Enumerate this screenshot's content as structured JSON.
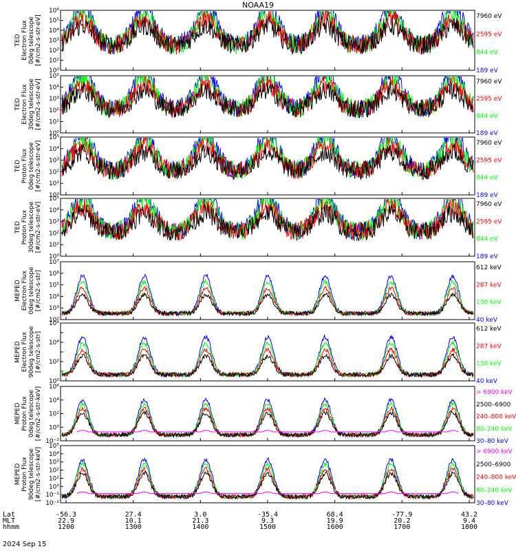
{
  "title": "NOAA19",
  "date_label": "2024 Sep 15",
  "footer": {
    "row_labels": [
      "Lat",
      "MLT",
      "hhmm"
    ],
    "columns": [
      {
        "lat": "-56.3",
        "mlt": "22.9",
        "hhmm": "1200"
      },
      {
        "lat": "27.4",
        "mlt": "10.1",
        "hhmm": "1300"
      },
      {
        "lat": "3.0",
        "mlt": "21.3",
        "hhmm": "1400"
      },
      {
        "lat": "-35.4",
        "mlt": "9.3",
        "hhmm": "1500"
      },
      {
        "lat": "68.4",
        "mlt": "19.9",
        "hhmm": "1600"
      },
      {
        "lat": "-77.9",
        "mlt": "20.2",
        "hhmm": "1700"
      },
      {
        "lat": "43.2",
        "mlt": "9.4",
        "hhmm": "1800"
      }
    ]
  },
  "colors": {
    "black": "#000000",
    "blue": "#0000ff",
    "red": "#ff0000",
    "green": "#00ff00",
    "magenta": "#ff00ff"
  },
  "chart_data": [
    {
      "type": "line",
      "panel": 1,
      "ylabel": [
        "TED",
        "Electron Flux",
        "0deg telescope",
        "[#/cm2-s-str-eV]"
      ],
      "ylim": [
        1,
        1000000
      ],
      "yscale": "log",
      "ytick_labels": [
        "10⁰",
        "10¹",
        "10²",
        "10³",
        "10⁴",
        "10⁵",
        "10⁶"
      ],
      "legend": [
        {
          "label": "7960 eV",
          "color": "black"
        },
        {
          "label": "2595 eV",
          "color": "red"
        },
        {
          "label": "844 eV",
          "color": "green"
        },
        {
          "label": "189 eV",
          "color": "blue"
        }
      ]
    },
    {
      "type": "line",
      "panel": 2,
      "ylabel": [
        "TED",
        "Electron Flux",
        "30deg telescope",
        "[#/cm2-s-str-eV]"
      ],
      "ylim": [
        1,
        100000
      ],
      "yscale": "log",
      "ytick_labels": [
        "10⁰",
        "10¹",
        "10²",
        "10³",
        "10⁴",
        "10⁵"
      ],
      "legend": [
        {
          "label": "7960 eV",
          "color": "black"
        },
        {
          "label": "2595 eV",
          "color": "red"
        },
        {
          "label": "844 eV",
          "color": "green"
        },
        {
          "label": "189 eV",
          "color": "blue"
        }
      ]
    },
    {
      "type": "line",
      "panel": 3,
      "ylabel": [
        "TED",
        "Proton Flux",
        "0deg telescope",
        "[#/cm2-s-str-eV]"
      ],
      "ylim": [
        1,
        100000
      ],
      "yscale": "log",
      "ytick_labels": [
        "10⁰",
        "10¹",
        "10²",
        "10³",
        "10⁴",
        "10⁵"
      ],
      "legend": [
        {
          "label": "7960 eV",
          "color": "black"
        },
        {
          "label": "2595 eV",
          "color": "red"
        },
        {
          "label": "844 eV",
          "color": "green"
        },
        {
          "label": "189 eV",
          "color": "blue"
        }
      ]
    },
    {
      "type": "line",
      "panel": 4,
      "ylabel": [
        "TED",
        "Proton Flux",
        "30deg telescope",
        "[#/cm2-s-str-eV]"
      ],
      "ylim": [
        1,
        100000
      ],
      "yscale": "log",
      "ytick_labels": [
        "10⁰",
        "10¹",
        "10²",
        "10³",
        "10⁴",
        "10⁵"
      ],
      "legend": [
        {
          "label": "7960 eV",
          "color": "black"
        },
        {
          "label": "2595 eV",
          "color": "red"
        },
        {
          "label": "844 eV",
          "color": "green"
        },
        {
          "label": "189 eV",
          "color": "blue"
        }
      ]
    },
    {
      "type": "line",
      "panel": 5,
      "ylabel": [
        "MEPED",
        "Electron Flux",
        "0deg telescope",
        "[#/cm2-s-str]"
      ],
      "ylim": [
        100,
        10000000
      ],
      "yscale": "log",
      "ytick_labels": [
        "10²",
        "10³",
        "10⁴",
        "10⁵",
        "10⁶",
        "10⁷"
      ],
      "legend": [
        {
          "label": "612 keV",
          "color": "black"
        },
        {
          "label": "287 keV",
          "color": "red"
        },
        {
          "label": "130 keV",
          "color": "green"
        },
        {
          "label": "40 keV",
          "color": "blue"
        }
      ]
    },
    {
      "type": "line",
      "panel": 6,
      "ylabel": [
        "MEPED",
        "Electron Flux",
        "90deg telescope",
        "[#/cm2-s-str]"
      ],
      "ylim": [
        1,
        1000000
      ],
      "yscale": "log",
      "ytick_labels": [
        "10⁰",
        "",
        "10²",
        "",
        "10⁴",
        "",
        "10⁶"
      ],
      "legend": [
        {
          "label": "612 keV",
          "color": "black"
        },
        {
          "label": "287 keV",
          "color": "red"
        },
        {
          "label": "130 keV",
          "color": "green"
        },
        {
          "label": "40 keV",
          "color": "blue"
        }
      ]
    },
    {
      "type": "line",
      "panel": 7,
      "ylabel": [
        "MEPED",
        "Proton Flux",
        "0deg telescope",
        "[#/cm2-s-str-keV]"
      ],
      "ylim": [
        0.01,
        1000000
      ],
      "yscale": "log",
      "ytick_labels": [
        "10⁻²",
        "10⁰",
        "10²",
        "10⁴",
        "10⁶"
      ],
      "legend": [
        {
          "label": "> 6900 keV",
          "color": "magenta"
        },
        {
          "label": "2500–6900",
          "color": "black"
        },
        {
          "label": "240–800 keV",
          "color": "red"
        },
        {
          "label": "80–240 keV",
          "color": "green"
        },
        {
          "label": "30–80 keV",
          "color": "blue"
        }
      ]
    },
    {
      "type": "line",
      "panel": 8,
      "ylabel": [
        "MEPED",
        "Proton Flux",
        "90deg telescope",
        "[#/cm2-s-str-keV]"
      ],
      "ylim": [
        0.01,
        100000
      ],
      "yscale": "log",
      "ytick_labels": [
        "10⁻²",
        "10⁻¹",
        "10⁰",
        "10¹",
        "10²",
        "10³",
        "10⁴",
        "10⁵"
      ],
      "legend": [
        {
          "label": "> 6900 keV",
          "color": "magenta"
        },
        {
          "label": "2500–6900",
          "color": "black"
        },
        {
          "label": "240–800 keV",
          "color": "red"
        },
        {
          "label": "80–240 keV",
          "color": "green"
        },
        {
          "label": "30–80 keV",
          "color": "blue"
        }
      ]
    }
  ]
}
